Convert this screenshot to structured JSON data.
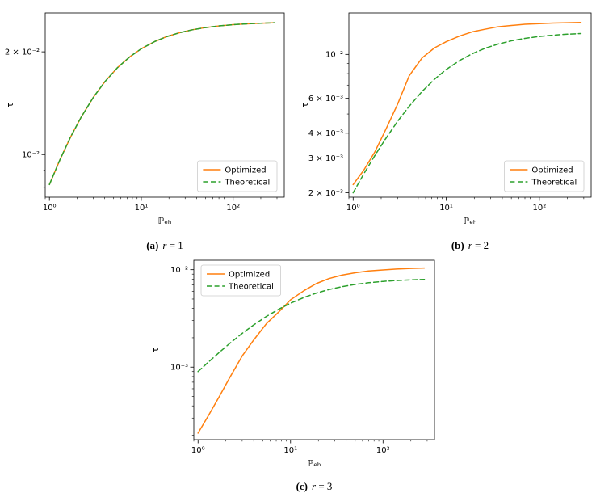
{
  "page": {
    "background": "#ffffff"
  },
  "colors": {
    "optimized": "#ff7f0e",
    "theoretical": "#2ca02c",
    "legend_border": "#cccccc",
    "axis": "#000000"
  },
  "figures": [
    {
      "caption_label": "(a)",
      "caption_var": "r",
      "caption_eq": " = 1"
    },
    {
      "caption_label": "(b)",
      "caption_var": "r",
      "caption_eq": " = 2"
    },
    {
      "caption_label": "(c)",
      "caption_var": "r",
      "caption_eq": " = 3"
    }
  ],
  "legend_labels": [
    "Optimized",
    "Theoretical"
  ],
  "chart_data": [
    {
      "id": "a",
      "type": "line",
      "xscale": "log",
      "yscale": "log",
      "title": "",
      "xlabel": "ℙₑₕ",
      "ylabel": "τ",
      "xlim": [
        0.9,
        360
      ],
      "ylim": [
        0.0075,
        0.026
      ],
      "xticks": [
        {
          "v": 1,
          "label": "10⁰"
        },
        {
          "v": 10,
          "label": "10¹"
        },
        {
          "v": 100,
          "label": "10²"
        }
      ],
      "yticks": [
        {
          "v": 0.01,
          "label": "10⁻²"
        },
        {
          "v": 0.02,
          "label": "2 × 10⁻²"
        }
      ],
      "legend": "lower-right",
      "grid": false,
      "series": [
        {
          "name": "Optimized",
          "color": "#ff7f0e",
          "style": "solid",
          "points": [
            [
              1,
              0.00817
            ],
            [
              1.3,
              0.00965
            ],
            [
              1.7,
              0.01126
            ],
            [
              2.2,
              0.01283
            ],
            [
              3,
              0.0147
            ],
            [
              4,
              0.01633
            ],
            [
              5.5,
              0.01797
            ],
            [
              7.5,
              0.01934
            ],
            [
              10,
              0.02042
            ],
            [
              14,
              0.02144
            ],
            [
              19,
              0.02217
            ],
            [
              26,
              0.02275
            ],
            [
              36,
              0.02321
            ],
            [
              50,
              0.02356
            ],
            [
              70,
              0.02382
            ],
            [
              100,
              0.02402
            ],
            [
              140,
              0.02416
            ],
            [
              200,
              0.02426
            ],
            [
              280,
              0.02433
            ]
          ]
        },
        {
          "name": "Theoretical",
          "color": "#2ca02c",
          "style": "dashed",
          "points": [
            [
              1,
              0.00817
            ],
            [
              1.3,
              0.00965
            ],
            [
              1.7,
              0.01126
            ],
            [
              2.2,
              0.01283
            ],
            [
              3,
              0.0147
            ],
            [
              4,
              0.01633
            ],
            [
              5.5,
              0.01797
            ],
            [
              7.5,
              0.01934
            ],
            [
              10,
              0.02042
            ],
            [
              14,
              0.02144
            ],
            [
              19,
              0.02217
            ],
            [
              26,
              0.02275
            ],
            [
              36,
              0.02321
            ],
            [
              50,
              0.02356
            ],
            [
              70,
              0.02382
            ],
            [
              100,
              0.02402
            ],
            [
              140,
              0.02416
            ],
            [
              200,
              0.02426
            ],
            [
              280,
              0.02433
            ]
          ]
        }
      ]
    },
    {
      "id": "b",
      "type": "line",
      "xscale": "log",
      "yscale": "log",
      "title": "",
      "xlabel": "ℙₑₕ",
      "ylabel": "τ",
      "xlim": [
        0.9,
        360
      ],
      "ylim": [
        0.0019,
        0.0162
      ],
      "xticks": [
        {
          "v": 1,
          "label": "10⁰"
        },
        {
          "v": 10,
          "label": "10¹"
        },
        {
          "v": 100,
          "label": "10²"
        }
      ],
      "yticks": [
        {
          "v": 0.01,
          "label": "10⁻²"
        },
        {
          "v": 0.006,
          "label": "6 × 10⁻³"
        },
        {
          "v": 0.004,
          "label": "4 × 10⁻³"
        },
        {
          "v": 0.003,
          "label": "3 × 10⁻³"
        },
        {
          "v": 0.002,
          "label": "2 × 10⁻³"
        }
      ],
      "legend": "lower-right",
      "grid": false,
      "series": [
        {
          "name": "Optimized",
          "color": "#ff7f0e",
          "style": "solid",
          "points": [
            [
              1,
              0.0022
            ],
            [
              1.3,
              0.0026
            ],
            [
              1.7,
              0.0032
            ],
            [
              2.2,
              0.0041
            ],
            [
              3,
              0.0056
            ],
            [
              4,
              0.0078
            ],
            [
              5.5,
              0.0096
            ],
            [
              7.5,
              0.0108
            ],
            [
              10,
              0.0116
            ],
            [
              14,
              0.0124
            ],
            [
              19,
              0.013
            ],
            [
              26,
              0.0134
            ],
            [
              36,
              0.0138
            ],
            [
              50,
              0.014
            ],
            [
              70,
              0.0142
            ],
            [
              100,
              0.0143
            ],
            [
              140,
              0.0144
            ],
            [
              200,
              0.01445
            ],
            [
              280,
              0.0145
            ]
          ]
        },
        {
          "name": "Theoretical",
          "color": "#2ca02c",
          "style": "dashed",
          "points": [
            [
              1,
              0.002
            ],
            [
              1.3,
              0.00249
            ],
            [
              1.7,
              0.00307
            ],
            [
              2.2,
              0.00371
            ],
            [
              3,
              0.00459
            ],
            [
              4,
              0.00547
            ],
            [
              5.5,
              0.0065
            ],
            [
              7.5,
              0.0075
            ],
            [
              10,
              0.00839
            ],
            [
              14,
              0.00933
            ],
            [
              19,
              0.01008
            ],
            [
              26,
              0.01073
            ],
            [
              36,
              0.01128
            ],
            [
              50,
              0.01171
            ],
            [
              70,
              0.01205
            ],
            [
              100,
              0.01232
            ],
            [
              140,
              0.01251
            ],
            [
              200,
              0.01265
            ],
            [
              280,
              0.01275
            ]
          ]
        }
      ]
    },
    {
      "id": "c",
      "type": "line",
      "xscale": "log",
      "yscale": "log",
      "title": "",
      "xlabel": "ℙₑₕ",
      "ylabel": "τ",
      "xlim": [
        0.9,
        360
      ],
      "ylim": [
        0.00018,
        0.0125
      ],
      "xticks": [
        {
          "v": 1,
          "label": "10⁰"
        },
        {
          "v": 10,
          "label": "10¹"
        },
        {
          "v": 100,
          "label": "10²"
        }
      ],
      "yticks": [
        {
          "v": 0.01,
          "label": "10⁻²"
        },
        {
          "v": 0.001,
          "label": "10⁻³"
        }
      ],
      "legend": "upper-left",
      "grid": false,
      "series": [
        {
          "name": "Optimized",
          "color": "#ff7f0e",
          "style": "solid",
          "points": [
            [
              1,
              0.00021
            ],
            [
              1.3,
              0.00032
            ],
            [
              1.7,
              0.0005
            ],
            [
              2.2,
              0.00078
            ],
            [
              3,
              0.0013
            ],
            [
              4,
              0.0019
            ],
            [
              5.5,
              0.0028
            ],
            [
              7.5,
              0.0037
            ],
            [
              10,
              0.0049
            ],
            [
              14,
              0.0061
            ],
            [
              19,
              0.0072
            ],
            [
              26,
              0.0081
            ],
            [
              36,
              0.0088
            ],
            [
              50,
              0.0093
            ],
            [
              70,
              0.0097
            ],
            [
              100,
              0.00995
            ],
            [
              140,
              0.01015
            ],
            [
              200,
              0.0103
            ],
            [
              280,
              0.0104
            ]
          ]
        },
        {
          "name": "Theoretical",
          "color": "#2ca02c",
          "style": "dashed",
          "points": [
            [
              1,
              0.0009
            ],
            [
              1.3,
              0.00113
            ],
            [
              1.7,
              0.00142
            ],
            [
              2.2,
              0.00175
            ],
            [
              3,
              0.00222
            ],
            [
              4,
              0.00271
            ],
            [
              5.5,
              0.00332
            ],
            [
              7.5,
              0.00394
            ],
            [
              10,
              0.00453
            ],
            [
              14,
              0.00519
            ],
            [
              19,
              0.00575
            ],
            [
              26,
              0.00625
            ],
            [
              36,
              0.00669
            ],
            [
              50,
              0.00706
            ],
            [
              70,
              0.00735
            ],
            [
              100,
              0.00758
            ],
            [
              140,
              0.00774
            ],
            [
              200,
              0.00786
            ],
            [
              280,
              0.00794
            ]
          ]
        }
      ]
    }
  ]
}
